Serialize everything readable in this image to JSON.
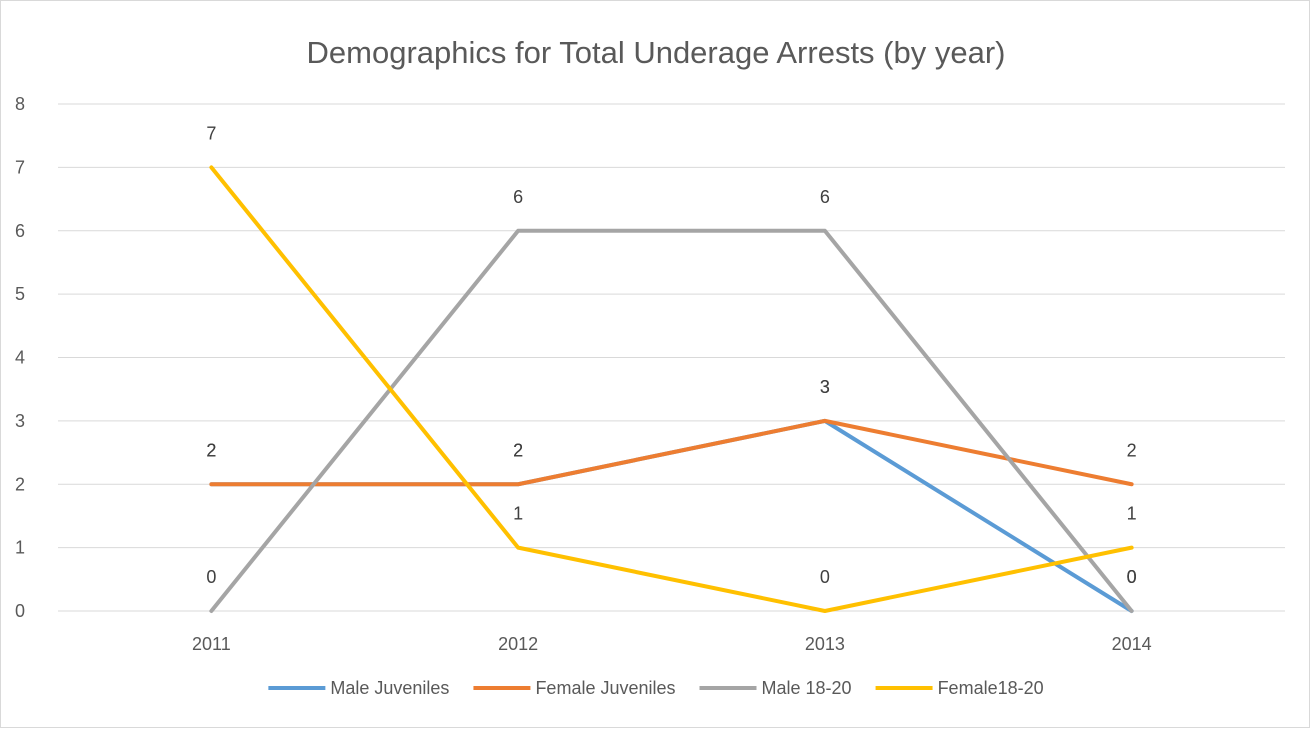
{
  "chart_data": {
    "type": "line",
    "title": "Demographics for Total Underage Arrests (by year)",
    "xlabel": "",
    "ylabel": "",
    "categories": [
      "2011",
      "2012",
      "2013",
      "2014"
    ],
    "ylim": [
      0,
      8
    ],
    "yticks": [
      "0",
      "1",
      "2",
      "3",
      "4",
      "5",
      "6",
      "7",
      "8"
    ],
    "grid": true,
    "legend_position": "bottom",
    "series": [
      {
        "name": "Male Juveniles",
        "color": "#5b9bd5",
        "values": [
          2,
          2,
          3,
          0
        ]
      },
      {
        "name": "Female Juveniles",
        "color": "#ed7d31",
        "values": [
          2,
          2,
          3,
          2
        ]
      },
      {
        "name": "Male 18-20",
        "color": "#a5a5a5",
        "values": [
          0,
          6,
          6,
          0
        ]
      },
      {
        "name": "Female18-20",
        "color": "#ffc000",
        "values": [
          7,
          1,
          0,
          1
        ]
      }
    ]
  }
}
